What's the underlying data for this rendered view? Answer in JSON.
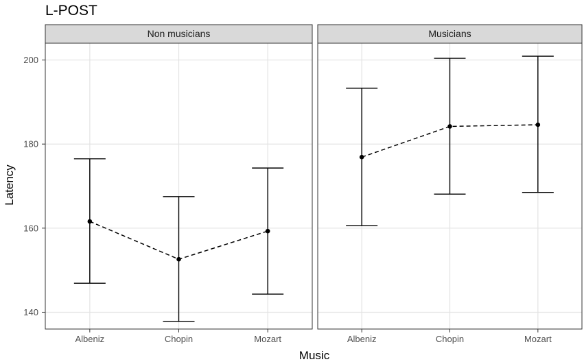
{
  "chart_data": {
    "type": "line",
    "title": "L-POST",
    "xlabel": "Music",
    "ylabel": "Latency",
    "ylim": [
      136,
      204
    ],
    "yticks": [
      140,
      160,
      180,
      200
    ],
    "categories": [
      "Albeniz",
      "Chopin",
      "Mozart"
    ],
    "grid": true,
    "line_style": "dashed",
    "error_bars": true,
    "panels": [
      {
        "name": "Non musicians",
        "mean": [
          161.6,
          152.6,
          159.3
        ],
        "lower": [
          146.9,
          137.8,
          144.3
        ],
        "upper": [
          176.5,
          167.5,
          174.3
        ]
      },
      {
        "name": "Musicians",
        "mean": [
          176.9,
          184.2,
          184.6
        ],
        "lower": [
          160.6,
          168.1,
          168.5
        ],
        "upper": [
          193.3,
          200.4,
          200.9
        ]
      }
    ]
  }
}
